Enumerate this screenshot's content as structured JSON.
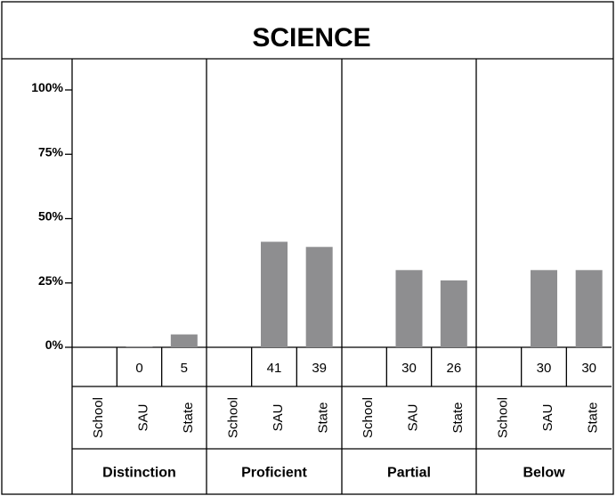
{
  "chart_data": {
    "type": "bar",
    "title": "SCIENCE",
    "categories": [
      "Distinction",
      "Proficient",
      "Partial",
      "Below"
    ],
    "subgroups": [
      "School",
      "SAU",
      "State"
    ],
    "series": [
      {
        "name": "School",
        "values": [
          null,
          null,
          null,
          null
        ]
      },
      {
        "name": "SAU",
        "values": [
          0,
          41,
          30,
          30
        ]
      },
      {
        "name": "State",
        "values": [
          5,
          39,
          26,
          30
        ]
      }
    ],
    "ylim": [
      0,
      100
    ],
    "yticks": [
      0,
      25,
      50,
      75,
      100
    ],
    "ytick_labels": [
      "0%",
      "25%",
      "50%",
      "75%",
      "100%"
    ],
    "grid": false,
    "legend": "none"
  }
}
